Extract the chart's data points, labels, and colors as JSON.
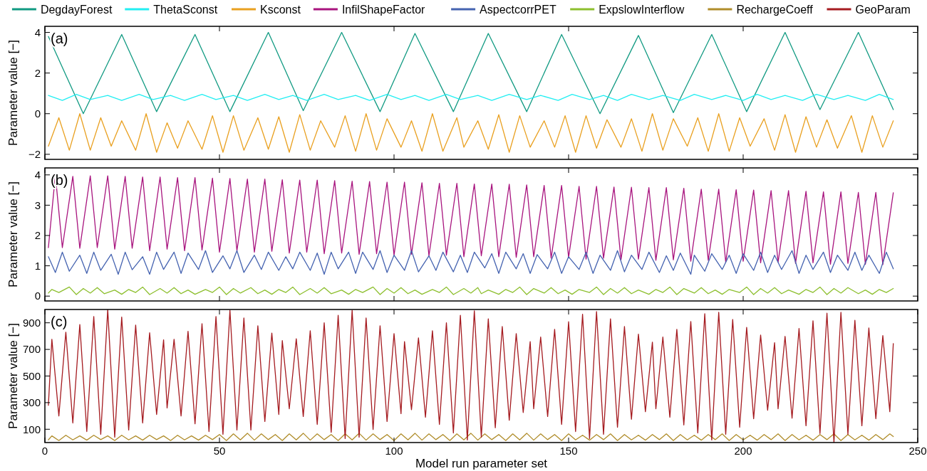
{
  "chart_data": [
    {
      "type": "line",
      "ylabel": "Parameter value [−]",
      "annotations": [
        "(a)"
      ],
      "xlim": [
        0,
        250
      ],
      "xticks": [
        0,
        50,
        100,
        150,
        200,
        250
      ],
      "ylim": [
        -2.25,
        4.3
      ],
      "yticks": [
        -2,
        0,
        2,
        4
      ],
      "tick_labels": "y",
      "legend": "top",
      "series": [
        {
          "name": "DegdayForest",
          "color": "#119a82",
          "x": [
            1,
            11,
            22,
            32,
            43,
            53,
            64,
            74,
            85,
            96,
            106,
            117,
            127,
            138,
            148,
            159,
            170,
            180,
            191,
            201,
            212,
            222,
            233,
            243
          ],
          "values": [
            3.8,
            0,
            3.9,
            0.1,
            3.9,
            0.1,
            4.0,
            0.15,
            4.0,
            0.1,
            3.95,
            0.1,
            3.95,
            0.1,
            3.9,
            0,
            3.85,
            0.05,
            3.9,
            0.1,
            4.0,
            0.2,
            4.0,
            0.2
          ]
        },
        {
          "name": "ThetaSconst",
          "color": "#22eef2",
          "x": [
            1,
            5,
            9,
            13,
            18,
            22,
            27,
            31,
            36,
            40,
            45,
            49,
            54,
            58,
            63,
            67,
            71,
            75,
            80,
            84,
            89,
            93,
            98,
            102,
            106,
            110,
            115,
            119,
            124,
            128,
            133,
            138,
            142,
            147,
            151,
            156,
            160,
            164,
            168,
            173,
            177,
            182,
            186,
            191,
            195,
            200,
            204,
            208,
            212,
            217,
            221,
            226,
            230,
            235,
            239,
            243
          ],
          "values": [
            0.9,
            0.65,
            0.95,
            0.7,
            0.9,
            0.65,
            0.95,
            0.7,
            0.9,
            0.65,
            0.95,
            0.7,
            0.9,
            0.65,
            0.95,
            0.7,
            0.9,
            0.65,
            0.95,
            0.7,
            0.9,
            0.65,
            0.95,
            0.7,
            0.9,
            0.65,
            0.95,
            0.7,
            0.9,
            0.65,
            0.95,
            0.7,
            0.9,
            0.65,
            0.95,
            0.7,
            0.9,
            0.65,
            0.95,
            0.7,
            0.9,
            0.65,
            0.95,
            0.7,
            0.9,
            0.65,
            0.95,
            0.7,
            0.9,
            0.65,
            0.95,
            0.7,
            0.9,
            0.65,
            0.95,
            0.7
          ]
        },
        {
          "name": "Ksconst",
          "color": "#e9a020",
          "x": [
            1,
            4,
            7,
            10,
            13,
            16,
            19,
            22,
            26,
            29,
            32,
            35,
            38,
            41,
            45,
            48,
            51,
            54,
            57,
            61,
            64,
            67,
            70,
            73,
            76,
            79,
            83,
            86,
            89,
            92,
            95,
            98,
            102,
            105,
            108,
            111,
            114,
            118,
            120,
            124,
            127,
            130,
            133,
            136,
            139,
            143,
            146,
            149,
            152,
            155,
            158,
            161,
            165,
            168,
            171,
            174,
            177,
            180,
            184,
            187,
            190,
            193,
            196,
            199,
            202,
            206,
            209,
            212,
            215,
            218,
            221,
            224,
            227,
            231,
            234,
            237,
            240,
            243
          ],
          "values": [
            -1.6,
            -0.2,
            -1.8,
            0,
            -1.8,
            -0.2,
            -1.6,
            -0.35,
            -1.8,
            0,
            -1.9,
            -0.45,
            -1.7,
            -0.35,
            -1.75,
            -0.1,
            -1.9,
            -0.1,
            -1.8,
            -0.2,
            -1.75,
            -0.15,
            -1.9,
            -0.05,
            -1.8,
            -0.35,
            -1.65,
            -0.1,
            -1.85,
            0,
            -1.8,
            -0.25,
            -1.65,
            -0.35,
            -1.85,
            0,
            -1.85,
            -0.2,
            -1.65,
            -0.35,
            -1.75,
            -0.05,
            -1.9,
            -0.1,
            -1.65,
            -0.35,
            -1.65,
            -0.1,
            -1.9,
            -0.1,
            -1.7,
            -0.3,
            -1.65,
            -0.25,
            -1.85,
            0,
            -1.8,
            -0.25,
            -1.6,
            -0.2,
            -1.85,
            0,
            -1.85,
            -0.2,
            -1.6,
            -0.25,
            -1.8,
            -0.05,
            -1.9,
            -0.15,
            -1.65,
            -0.3,
            -1.7,
            -0.1,
            -1.9,
            -0.1,
            -1.65,
            -0.35
          ]
        }
      ]
    },
    {
      "type": "line",
      "ylabel": "Parameter value [−]",
      "annotations": [
        "(b)"
      ],
      "xlim": [
        0,
        250
      ],
      "xticks": [
        0,
        50,
        100,
        150,
        200,
        250
      ],
      "ylim": [
        -0.16,
        4.23
      ],
      "yticks": [
        0,
        1,
        2,
        3,
        4
      ],
      "tick_labels": "y",
      "legend": "top",
      "series": [
        {
          "name": "InfilShapeFactor",
          "color": "#a8147e",
          "x": [
            1,
            3,
            5,
            8,
            10,
            13,
            15,
            18,
            20,
            23,
            25,
            28,
            30,
            33,
            35,
            38,
            40,
            43,
            45,
            48,
            50,
            53,
            55,
            58,
            60,
            63,
            65,
            68,
            70,
            73,
            75,
            78,
            80,
            83,
            85,
            88,
            90,
            93,
            95,
            98,
            100,
            103,
            105,
            108,
            110,
            113,
            115,
            118,
            120,
            123,
            125,
            128,
            130,
            133,
            135,
            138,
            140,
            143,
            145,
            148,
            150,
            153,
            155,
            158,
            160,
            163,
            165,
            168,
            170,
            173,
            175,
            178,
            180,
            183,
            185,
            188,
            190,
            193,
            195,
            198,
            200,
            203,
            205,
            208,
            210,
            213,
            215,
            218,
            220,
            223,
            225,
            228,
            230,
            233,
            235,
            238,
            240,
            243
          ],
          "values": [
            1.6,
            3.99,
            1.6,
            3.95,
            1.58,
            3.97,
            1.6,
            3.97,
            1.55,
            3.95,
            1.58,
            3.93,
            1.5,
            3.93,
            1.55,
            3.91,
            1.5,
            3.91,
            1.52,
            3.89,
            1.45,
            3.88,
            1.5,
            3.86,
            1.45,
            3.86,
            1.48,
            3.84,
            1.42,
            3.83,
            1.45,
            3.83,
            1.4,
            3.81,
            1.42,
            3.79,
            1.38,
            3.78,
            1.4,
            3.76,
            1.35,
            3.76,
            1.38,
            3.74,
            1.33,
            3.72,
            1.35,
            3.72,
            1.3,
            3.7,
            1.33,
            3.7,
            1.3,
            3.69,
            1.28,
            3.67,
            1.3,
            3.65,
            1.25,
            3.65,
            1.28,
            3.62,
            1.22,
            3.62,
            1.25,
            3.6,
            1.2,
            3.59,
            1.22,
            3.58,
            1.18,
            3.58,
            1.2,
            3.56,
            1.15,
            3.53,
            1.18,
            3.53,
            1.12,
            3.51,
            1.15,
            3.5,
            1.1,
            3.48,
            1.12,
            3.48,
            1.08,
            3.46,
            1.1,
            3.44,
            1.05,
            3.44,
            1.08,
            3.42,
            1.05,
            3.42,
            1.04,
            3.41
          ]
        },
        {
          "name": "AspectcorrPET",
          "color": "#4563b0",
          "x": [
            1,
            3,
            5,
            7,
            10,
            12,
            14,
            16,
            19,
            21,
            23,
            25,
            28,
            30,
            32,
            34,
            37,
            39,
            41,
            44,
            46,
            48,
            51,
            53,
            55,
            57,
            60,
            62,
            64,
            67,
            69,
            71,
            73,
            76,
            78,
            80,
            82,
            84,
            87,
            89,
            91,
            94,
            96,
            98,
            100,
            103,
            105,
            107,
            110,
            112,
            114,
            117,
            119,
            121,
            123,
            126,
            128,
            130,
            132,
            135,
            137,
            139,
            141,
            144,
            146,
            148,
            150,
            153,
            155,
            157,
            159,
            162,
            164,
            166,
            168,
            171,
            173,
            176,
            178,
            180,
            182,
            185,
            186,
            189,
            191,
            194,
            196,
            198,
            200,
            203,
            205,
            207,
            209,
            211,
            214,
            216,
            218,
            220,
            223,
            225,
            227,
            230,
            232,
            234,
            236,
            239,
            241,
            243
          ],
          "values": [
            1.3,
            0.78,
            1.45,
            0.82,
            1.35,
            0.75,
            1.45,
            0.85,
            1.38,
            0.72,
            1.45,
            0.87,
            1.3,
            0.72,
            1.45,
            0.88,
            1.45,
            0.75,
            1.42,
            0.88,
            1.5,
            0.78,
            1.33,
            0.9,
            1.5,
            0.78,
            1.35,
            0.88,
            1.45,
            0.85,
            1.3,
            0.9,
            1.45,
            0.85,
            1.42,
            0.72,
            1.45,
            0.9,
            1.45,
            0.75,
            1.45,
            0.88,
            1.5,
            0.78,
            1.35,
            0.85,
            1.5,
            0.8,
            1.33,
            0.85,
            1.45,
            0.8,
            1.35,
            0.78,
            1.45,
            0.93,
            1.4,
            0.75,
            1.45,
            0.9,
            1.4,
            0.75,
            1.37,
            0.9,
            1.45,
            0.75,
            1.3,
            0.88,
            1.45,
            0.75,
            1.35,
            0.85,
            1.5,
            0.8,
            1.35,
            0.88,
            1.45,
            0.78,
            1.33,
            0.85,
            1.42,
            0.72,
            1.35,
            0.82,
            1.4,
            0.88,
            1.35,
            0.75,
            1.4,
            0.85,
            1.45,
            0.78,
            1.35,
            0.88,
            1.5,
            0.75,
            1.35,
            0.88,
            1.45,
            0.78,
            1.35,
            0.85,
            1.45,
            0.85,
            1.35,
            0.75,
            1.45,
            0.9
          ]
        },
        {
          "name": "ExpslowInterflow",
          "color": "#8dbf2e",
          "x": [
            1,
            2,
            4,
            7,
            9,
            11,
            13,
            15,
            17,
            20,
            22,
            24,
            26,
            28,
            30,
            33,
            35,
            37,
            39,
            41,
            43,
            46,
            48,
            50,
            52,
            54,
            56,
            59,
            61,
            63,
            65,
            67,
            69,
            71,
            73,
            76,
            78,
            80,
            82,
            85,
            87,
            89,
            91,
            94,
            96,
            98,
            100,
            102,
            104,
            106,
            108,
            111,
            113,
            115,
            117,
            120,
            122,
            124,
            125,
            127,
            130,
            132,
            134,
            136,
            138,
            140,
            143,
            145,
            147,
            149,
            151,
            153,
            156,
            158,
            160,
            162,
            164,
            166,
            168,
            170,
            173,
            175,
            177,
            179,
            181,
            183,
            186,
            188,
            190,
            192,
            194,
            196,
            199,
            201,
            203,
            205,
            207,
            209,
            211,
            213,
            216,
            218,
            220,
            222,
            224,
            226,
            228,
            230,
            233,
            235,
            237,
            239,
            241,
            243
          ],
          "values": [
            0.1,
            0.22,
            0.12,
            0.3,
            0.05,
            0.25,
            0.1,
            0.28,
            0.08,
            0.2,
            0.06,
            0.22,
            0.12,
            0.3,
            0.05,
            0.25,
            0.1,
            0.28,
            0.08,
            0.2,
            0.06,
            0.22,
            0.12,
            0.3,
            0.05,
            0.25,
            0.1,
            0.28,
            0.08,
            0.2,
            0.06,
            0.22,
            0.12,
            0.3,
            0.05,
            0.25,
            0.1,
            0.28,
            0.08,
            0.2,
            0.06,
            0.22,
            0.12,
            0.3,
            0.05,
            0.25,
            0.1,
            0.28,
            0.08,
            0.2,
            0.06,
            0.22,
            0.12,
            0.3,
            0.05,
            0.25,
            0.1,
            0.28,
            0.08,
            0.2,
            0.06,
            0.22,
            0.12,
            0.3,
            0.05,
            0.25,
            0.1,
            0.28,
            0.08,
            0.2,
            0.06,
            0.22,
            0.12,
            0.3,
            0.05,
            0.25,
            0.1,
            0.28,
            0.08,
            0.2,
            0.06,
            0.22,
            0.12,
            0.3,
            0.05,
            0.25,
            0.1,
            0.28,
            0.08,
            0.2,
            0.06,
            0.22,
            0.12,
            0.3,
            0.05,
            0.25,
            0.1,
            0.28,
            0.08,
            0.2,
            0.06,
            0.22,
            0.12,
            0.3,
            0.05,
            0.25,
            0.1,
            0.28,
            0.08,
            0.2,
            0.06,
            0.22,
            0.12,
            0.25
          ]
        }
      ]
    },
    {
      "type": "line",
      "ylabel": "Parameter value [−]",
      "xlabel": "Model run parameter set",
      "annotations": [
        "(c)"
      ],
      "xlim": [
        0,
        250
      ],
      "xticks": [
        0,
        50,
        100,
        150,
        200,
        250
      ],
      "ylim": [
        0,
        1000
      ],
      "yticks": [
        100,
        300,
        500,
        700,
        900
      ],
      "legend": "top",
      "series": [
        {
          "name": "RechargeCoeff",
          "color": "#b08d2b",
          "x": [
            1,
            2,
            4,
            6,
            8,
            10,
            12,
            14,
            16,
            18,
            20,
            22,
            24,
            26,
            28,
            30,
            32,
            34,
            36,
            38,
            40,
            42,
            44,
            46,
            48,
            50,
            52,
            54,
            56,
            58,
            60,
            62,
            64,
            66,
            68,
            70,
            72,
            74,
            76,
            78,
            80,
            82,
            84,
            86,
            88,
            90,
            92,
            94,
            96,
            98,
            100,
            102,
            104,
            106,
            108,
            110,
            112,
            114,
            116,
            118,
            120,
            122,
            124,
            126,
            128,
            130,
            132,
            134,
            136,
            138,
            140,
            142,
            144,
            146,
            148,
            150,
            152,
            154,
            156,
            158,
            160,
            162,
            164,
            166,
            168,
            170,
            172,
            174,
            176,
            178,
            180,
            182,
            184,
            186,
            188,
            190,
            192,
            194,
            196,
            198,
            200,
            202,
            204,
            206,
            208,
            210,
            212,
            214,
            216,
            218,
            220,
            222,
            224,
            226,
            228,
            230,
            232,
            234,
            236,
            238,
            240,
            242,
            243
          ],
          "values": [
            20,
            50,
            15,
            55,
            20,
            50,
            18,
            55,
            22,
            50,
            15,
            55,
            20,
            50,
            18,
            55,
            22,
            50,
            15,
            55,
            20,
            50,
            18,
            55,
            22,
            60,
            15,
            65,
            20,
            70,
            18,
            65,
            22,
            60,
            15,
            65,
            20,
            70,
            18,
            65,
            22,
            60,
            15,
            65,
            20,
            70,
            18,
            65,
            22,
            60,
            15,
            65,
            20,
            70,
            18,
            65,
            22,
            60,
            15,
            65,
            20,
            70,
            18,
            65,
            22,
            60,
            15,
            65,
            20,
            70,
            18,
            65,
            22,
            60,
            15,
            65,
            20,
            55,
            18,
            60,
            22,
            65,
            15,
            60,
            20,
            55,
            18,
            60,
            22,
            65,
            15,
            60,
            20,
            55,
            18,
            60,
            22,
            65,
            15,
            60,
            20,
            55,
            18,
            60,
            22,
            65,
            15,
            60,
            20,
            55,
            18,
            60,
            22,
            65,
            15,
            60,
            20,
            55,
            18,
            60,
            22,
            65,
            45
          ]
        },
        {
          "name": "GeoParam",
          "color": "#a51b20",
          "x": [
            1,
            2,
            4,
            6,
            8,
            10,
            12,
            14,
            16,
            18,
            20,
            22,
            24,
            26,
            28,
            30,
            32,
            34,
            35,
            37,
            39,
            41,
            43,
            45,
            47,
            49,
            51,
            53,
            55,
            57,
            59,
            61,
            63,
            65,
            67,
            68,
            70,
            72,
            74,
            76,
            78,
            80,
            82,
            84,
            86,
            88,
            90,
            92,
            94,
            96,
            98,
            100,
            102,
            103,
            105,
            107,
            109,
            111,
            113,
            115,
            117,
            119,
            121,
            123,
            125,
            127,
            129,
            131,
            133,
            135,
            137,
            139,
            140,
            142,
            144,
            146,
            148,
            150,
            152,
            154,
            156,
            158,
            160,
            162,
            164,
            166,
            168,
            170,
            172,
            174,
            175,
            177,
            179,
            181,
            183,
            185,
            187,
            189,
            191,
            193,
            195,
            197,
            199,
            201,
            203,
            205,
            207,
            209,
            210,
            212,
            214,
            216,
            218,
            220,
            222,
            224,
            226,
            228,
            230,
            232,
            234,
            236,
            238,
            240,
            242,
            243
          ],
          "values": [
            280,
            776,
            200,
            830,
            147,
            887,
            83,
            947,
            62,
            1000,
            40,
            943,
            94,
            883,
            147,
            825,
            211,
            772,
            260,
            776,
            200,
            836,
            141,
            893,
            83,
            947,
            62,
            994,
            94,
            936,
            94,
            878,
            158,
            823,
            211,
            766,
            254,
            780,
            196,
            840,
            136,
            900,
            77,
            957,
            30,
            994,
            40,
            936,
            98,
            878,
            158,
            819,
            217,
            759,
            247,
            787,
            190,
            840,
            136,
            900,
            72,
            957,
            19,
            990,
            40,
            930,
            111,
            872,
            168,
            819,
            226,
            759,
            254,
            793,
            196,
            851,
            136,
            908,
            83,
            964,
            30,
            985,
            62,
            930,
            115,
            872,
            175,
            815,
            232,
            755,
            254,
            793,
            190,
            851,
            132,
            910,
            72,
            968,
            19,
            979,
            62,
            925,
            115,
            866,
            179,
            808,
            243,
            751,
            254,
            798,
            183,
            857,
            126,
            915,
            68,
            972,
            0,
            979,
            62,
            919,
            126,
            861,
            179,
            804,
            232,
            744
          ]
        }
      ]
    }
  ]
}
